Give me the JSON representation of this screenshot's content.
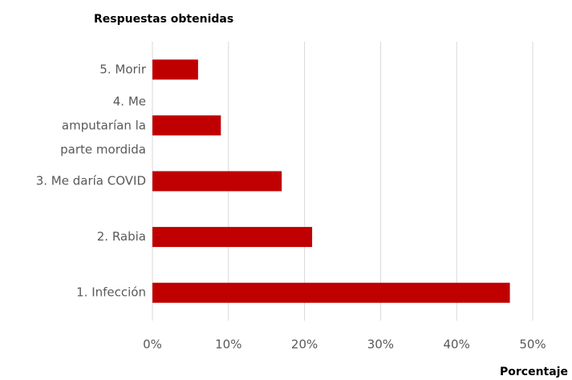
{
  "chart_data": {
    "type": "bar",
    "orientation": "horizontal",
    "title": "Respuestas obtenidas",
    "x_label": "Porcentaje",
    "categories": [
      "1. Infección",
      "2. Rabia",
      "3. Me daría COVID",
      "4. Me amputarían la parte mordida",
      "5. Morir"
    ],
    "values": [
      47,
      21,
      17,
      9,
      6
    ],
    "color": "#c00000",
    "xlim": [
      0,
      50
    ],
    "xticks": [
      {
        "value": 0,
        "label": "0%"
      },
      {
        "value": 10,
        "label": "10%"
      },
      {
        "value": 20,
        "label": "20%"
      },
      {
        "value": 30,
        "label": "30%"
      },
      {
        "value": 40,
        "label": "40%"
      },
      {
        "value": 50,
        "label": "50%"
      }
    ],
    "grid": true
  }
}
